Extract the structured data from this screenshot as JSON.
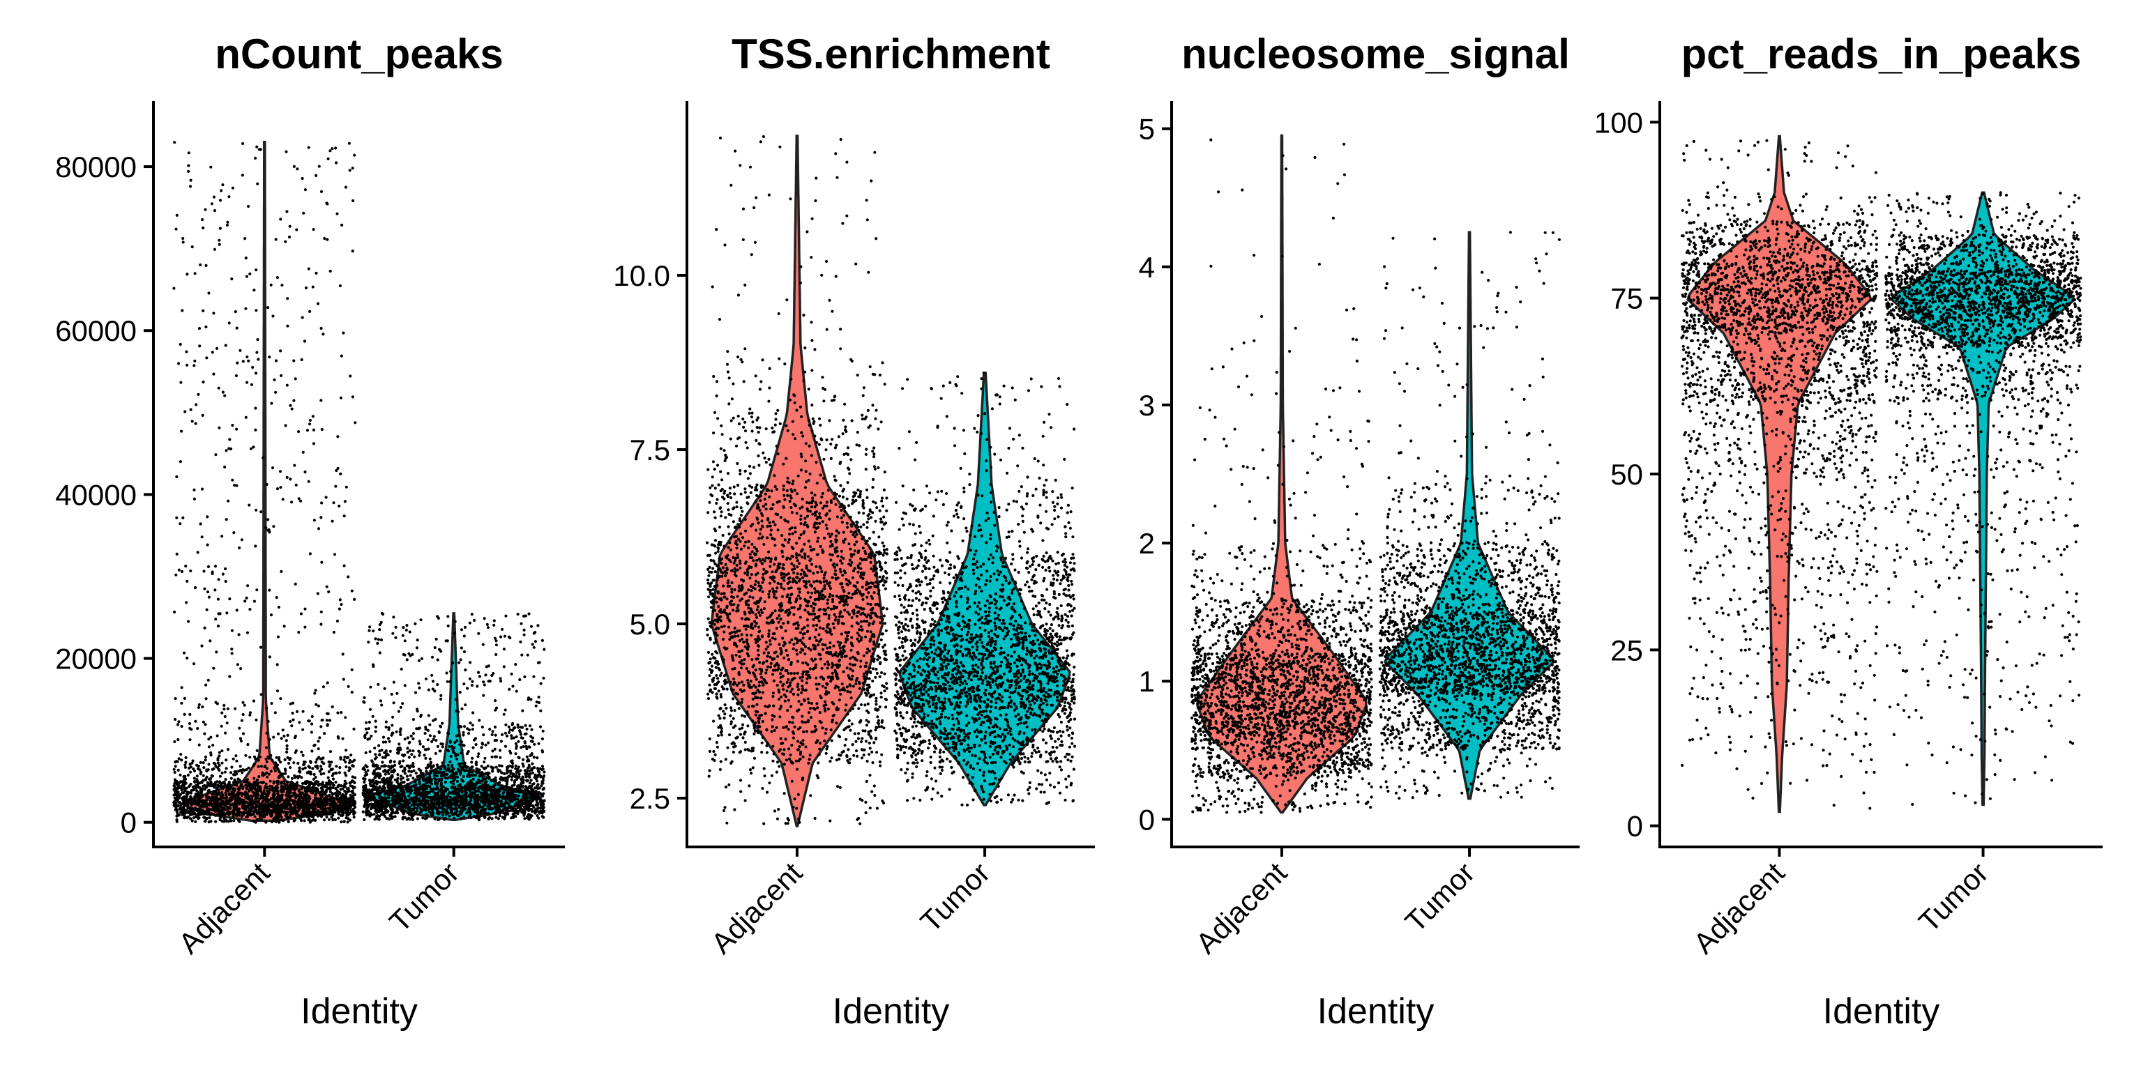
{
  "chart_data": [
    {
      "type": "violin",
      "title": "nCount_peaks",
      "xlabel": "Identity",
      "ylabel": "",
      "categories": [
        "Adjacent",
        "Tumor"
      ],
      "ylim": [
        -3000,
        88000
      ],
      "yticks": [
        0,
        20000,
        40000,
        60000,
        80000
      ],
      "ytick_labels": [
        "0",
        "20000",
        "40000",
        "60000",
        "80000"
      ],
      "points_shown": true,
      "groups": [
        {
          "name": "Adjacent",
          "color": "#F8766D",
          "min": 200,
          "max": 83000,
          "median": 2500,
          "q1": 1500,
          "q3": 4500
        },
        {
          "name": "Tumor",
          "color": "#00BFC4",
          "min": 300,
          "max": 25500,
          "median": 3200,
          "q1": 2000,
          "q3": 5000
        }
      ]
    },
    {
      "type": "violin",
      "title": "TSS.enrichment",
      "xlabel": "Identity",
      "ylabel": "",
      "categories": [
        "Adjacent",
        "Tumor"
      ],
      "ylim": [
        1.8,
        12.5
      ],
      "yticks": [
        2.5,
        5.0,
        7.5,
        10.0
      ],
      "ytick_labels": [
        "2.5",
        "5.0",
        "7.5",
        "10.0"
      ],
      "points_shown": true,
      "groups": [
        {
          "name": "Adjacent",
          "color": "#F8766D",
          "min": 2.1,
          "max": 12.0,
          "median": 5.3,
          "q1": 4.4,
          "q3": 6.2
        },
        {
          "name": "Tumor",
          "color": "#00BFC4",
          "min": 2.4,
          "max": 8.6,
          "median": 4.2,
          "q1": 3.8,
          "q3": 4.8
        }
      ]
    },
    {
      "type": "violin",
      "title": "nucleosome_signal",
      "xlabel": "Identity",
      "ylabel": "",
      "categories": [
        "Adjacent",
        "Tumor"
      ],
      "ylim": [
        -0.2,
        5.2
      ],
      "yticks": [
        0,
        1,
        2,
        3,
        4,
        5
      ],
      "ytick_labels": [
        "0",
        "1",
        "2",
        "3",
        "4",
        "5"
      ],
      "points_shown": true,
      "groups": [
        {
          "name": "Adjacent",
          "color": "#F8766D",
          "min": 0.05,
          "max": 4.95,
          "median": 0.85,
          "q1": 0.6,
          "q3": 1.1
        },
        {
          "name": "Tumor",
          "color": "#00BFC4",
          "min": 0.15,
          "max": 4.25,
          "median": 1.15,
          "q1": 0.9,
          "q3": 1.35
        }
      ]
    },
    {
      "type": "violin",
      "title": "pct_reads_in_peaks",
      "xlabel": "Identity",
      "ylabel": "",
      "categories": [
        "Adjacent",
        "Tumor"
      ],
      "ylim": [
        -3,
        103
      ],
      "yticks": [
        0,
        25,
        50,
        75,
        100
      ],
      "ytick_labels": [
        "0",
        "25",
        "50",
        "75",
        "100"
      ],
      "points_shown": true,
      "groups": [
        {
          "name": "Adjacent",
          "color": "#F8766D",
          "min": 2,
          "max": 98,
          "median": 72,
          "q1": 45,
          "q3": 78
        },
        {
          "name": "Tumor",
          "color": "#00BFC4",
          "min": 3,
          "max": 90,
          "median": 75,
          "q1": 68,
          "q3": 79
        }
      ]
    }
  ]
}
